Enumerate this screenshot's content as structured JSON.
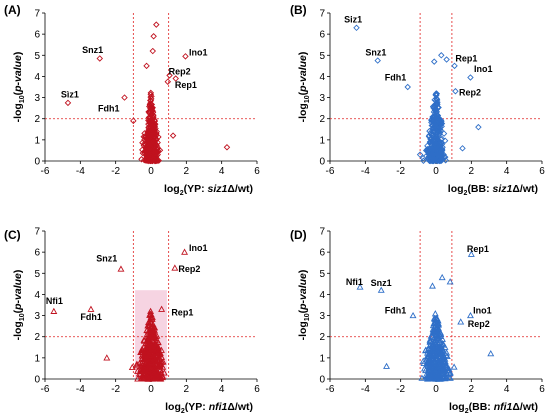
{
  "colors": {
    "red": "#c0121f",
    "blue": "#2f6fc8",
    "threshold": "#e02020",
    "pink_shade": "#f3c6d8"
  },
  "chart_data": [
    {
      "panel": "(A)",
      "type": "scatter",
      "marker": "diamond",
      "color": "#c0121f",
      "xlabel_prefix": "log",
      "xlabel_sub": "2",
      "xlabel_mid": "(YP: ",
      "xlabel_italic": "siz1",
      "xlabel_delta": "Δ",
      "xlabel_suffix": "/wt)",
      "ylabel": "-log10(p-value)",
      "xlim": [
        -6,
        6
      ],
      "ylim": [
        0,
        7
      ],
      "xticks": [
        "-6",
        "-4",
        "-2",
        "0",
        "2",
        "4",
        "6"
      ],
      "yticks": [
        "0",
        "1",
        "2",
        "3",
        "4",
        "5",
        "6",
        "7"
      ],
      "thresholds": {
        "x": [
          -1,
          1
        ],
        "y": 2
      },
      "cloud": {
        "sd_x": 0.18,
        "peak_y": 3.3,
        "count": 340
      },
      "points": [
        {
          "x": -4.7,
          "y": 2.75
        },
        {
          "x": -2.9,
          "y": 4.85
        },
        {
          "x": -1.5,
          "y": 3.0
        },
        {
          "x": 1.4,
          "y": 3.9
        },
        {
          "x": 1.05,
          "y": 4.05
        },
        {
          "x": 0.95,
          "y": 3.75
        },
        {
          "x": 1.95,
          "y": 4.95
        },
        {
          "x": 0.3,
          "y": 6.45
        },
        {
          "x": 0.15,
          "y": 5.9
        },
        {
          "x": 0.1,
          "y": 5.2
        },
        {
          "x": -0.25,
          "y": 4.5
        },
        {
          "x": 4.3,
          "y": 0.65
        },
        {
          "x": 1.25,
          "y": 1.2
        },
        {
          "x": -1.0,
          "y": 1.9
        }
      ],
      "labels": [
        {
          "text": "Snz1",
          "x": -3.9,
          "y": 5.1
        },
        {
          "text": "Sìz1",
          "x": -5.1,
          "y": 3.0
        },
        {
          "text": "Fdh1",
          "x": -3.0,
          "y": 2.35
        },
        {
          "text": "Ino1",
          "x": 2.15,
          "y": 5.0
        },
        {
          "text": "Rep2",
          "x": 1.0,
          "y": 4.1
        },
        {
          "text": "Rep1",
          "x": 1.35,
          "y": 3.45
        }
      ]
    },
    {
      "panel": "(B)",
      "type": "scatter",
      "marker": "diamond",
      "color": "#2f6fc8",
      "xlabel_prefix": "log",
      "xlabel_sub": "2",
      "xlabel_mid": "(BB: ",
      "xlabel_italic": "siz1",
      "xlabel_delta": "Δ",
      "xlabel_suffix": "/wt)",
      "ylabel": "-log10(p-value)",
      "xlim": [
        -6,
        6
      ],
      "ylim": [
        0,
        7
      ],
      "xticks": [
        "-6",
        "-4",
        "-2",
        "0",
        "2",
        "4",
        "6"
      ],
      "yticks": [
        "0",
        "1",
        "2",
        "3",
        "4",
        "5",
        "6",
        "7"
      ],
      "thresholds": {
        "x": [
          -0.9,
          0.9
        ],
        "y": 2
      },
      "cloud": {
        "sd_x": 0.22,
        "peak_y": 3.6,
        "count": 360
      },
      "points": [
        {
          "x": -4.5,
          "y": 6.3
        },
        {
          "x": -3.3,
          "y": 4.75
        },
        {
          "x": -1.6,
          "y": 3.5
        },
        {
          "x": 1.05,
          "y": 4.5
        },
        {
          "x": 1.95,
          "y": 3.95
        },
        {
          "x": 1.1,
          "y": 3.3
        },
        {
          "x": 0.6,
          "y": 4.8
        },
        {
          "x": 0.3,
          "y": 5.0
        },
        {
          "x": -0.1,
          "y": 4.7
        },
        {
          "x": 2.4,
          "y": 1.6
        },
        {
          "x": -0.9,
          "y": 0.3
        },
        {
          "x": 1.5,
          "y": 0.6
        }
      ],
      "labels": [
        {
          "text": "Siz1",
          "x": -5.2,
          "y": 6.55
        },
        {
          "text": "Snz1",
          "x": -4.0,
          "y": 5.0
        },
        {
          "text": "Fdh1",
          "x": -2.9,
          "y": 3.8
        },
        {
          "text": "Rep1",
          "x": 1.1,
          "y": 4.7
        },
        {
          "text": "Ino1",
          "x": 2.15,
          "y": 4.2
        },
        {
          "text": "Rep2",
          "x": 1.3,
          "y": 3.1
        }
      ]
    },
    {
      "panel": "(C)",
      "type": "scatter",
      "marker": "triangle",
      "color": "#c0121f",
      "xlabel_prefix": "log",
      "xlabel_sub": "2",
      "xlabel_mid": "(YP: ",
      "xlabel_italic": "nfi1",
      "xlabel_delta": "Δ",
      "xlabel_suffix": "/wt)",
      "ylabel": "-log10(p-value)",
      "xlim": [
        -6,
        6
      ],
      "ylim": [
        0,
        7
      ],
      "xticks": [
        "-6",
        "-4",
        "-2",
        "0",
        "2",
        "4",
        "6"
      ],
      "yticks": [
        "0",
        "1",
        "2",
        "3",
        "4",
        "5",
        "6",
        "7"
      ],
      "thresholds": {
        "x": [
          -1,
          1
        ],
        "y": 2
      },
      "shade": {
        "x0": -0.9,
        "x1": 0.9,
        "y0": 0,
        "y1": 4.2
      },
      "cloud": {
        "sd_x": 0.3,
        "peak_y": 3.4,
        "count": 380
      },
      "points": [
        {
          "x": -5.5,
          "y": 3.2
        },
        {
          "x": -3.4,
          "y": 3.3
        },
        {
          "x": -1.7,
          "y": 5.2
        },
        {
          "x": 1.9,
          "y": 6.0
        },
        {
          "x": 1.35,
          "y": 5.25
        },
        {
          "x": 0.6,
          "y": 3.3
        },
        {
          "x": -2.5,
          "y": 1.0
        },
        {
          "x": -0.8,
          "y": 0.7
        }
      ],
      "labels": [
        {
          "text": "Snz1",
          "x": -3.1,
          "y": 5.55
        },
        {
          "text": "Nfi1",
          "x": -5.95,
          "y": 3.55
        },
        {
          "text": "Fdh1",
          "x": -4.0,
          "y": 2.8
        },
        {
          "text": "Ino1",
          "x": 2.15,
          "y": 6.05
        },
        {
          "text": "Rep2",
          "x": 1.55,
          "y": 5.05
        },
        {
          "text": "Rep1",
          "x": 1.15,
          "y": 3.0
        }
      ]
    },
    {
      "panel": "(D)",
      "type": "scatter",
      "marker": "triangle",
      "color": "#2f6fc8",
      "xlabel_prefix": "log",
      "xlabel_sub": "2",
      "xlabel_mid": "(BB: ",
      "xlabel_italic": "nfi1",
      "xlabel_delta": "Δ",
      "xlabel_suffix": "/wt)",
      "ylabel": "-log10(p-value)",
      "xlim": [
        -6,
        6
      ],
      "ylim": [
        0,
        7
      ],
      "xticks": [
        "-6",
        "-4",
        "-2",
        "0",
        "2",
        "4",
        "6"
      ],
      "yticks": [
        "0",
        "1",
        "2",
        "3",
        "4",
        "5",
        "6",
        "7"
      ],
      "thresholds": {
        "x": [
          -0.9,
          0.9
        ],
        "y": 2
      },
      "cloud": {
        "sd_x": 0.3,
        "peak_y": 3.3,
        "count": 380
      },
      "points": [
        {
          "x": -4.3,
          "y": 4.35
        },
        {
          "x": -3.1,
          "y": 4.2
        },
        {
          "x": -1.3,
          "y": 3.0
        },
        {
          "x": 2.0,
          "y": 5.9
        },
        {
          "x": 1.95,
          "y": 3.0
        },
        {
          "x": 1.4,
          "y": 2.7
        },
        {
          "x": 0.8,
          "y": 4.6
        },
        {
          "x": 0.35,
          "y": 4.8
        },
        {
          "x": -0.2,
          "y": 4.4
        },
        {
          "x": -2.8,
          "y": 0.6
        },
        {
          "x": 3.1,
          "y": 1.2
        }
      ],
      "labels": [
        {
          "text": "Nfi1",
          "x": -5.1,
          "y": 4.45
        },
        {
          "text": "Snz1",
          "x": -3.7,
          "y": 4.4
        },
        {
          "text": "Fdh1",
          "x": -2.9,
          "y": 3.1
        },
        {
          "text": "Rep1",
          "x": 1.75,
          "y": 6.0
        },
        {
          "text": "Ino1",
          "x": 2.1,
          "y": 3.1
        },
        {
          "text": "Rep2",
          "x": 1.8,
          "y": 2.45
        }
      ]
    }
  ]
}
